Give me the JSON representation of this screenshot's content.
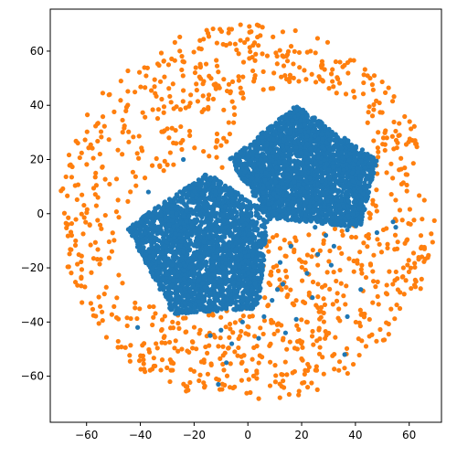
{
  "chart_data": {
    "type": "scatter",
    "title": "",
    "xlabel": "",
    "ylabel": "",
    "xlim": [
      -73.5,
      72.0
    ],
    "ylim": [
      -77.0,
      75.5
    ],
    "xticks": [
      -60,
      -40,
      -20,
      0,
      20,
      40,
      60
    ],
    "yticks": [
      -60,
      -40,
      -20,
      0,
      20,
      40,
      60
    ],
    "xtick_labels": [
      "−60",
      "−40",
      "−20",
      "0",
      "20",
      "40",
      "60"
    ],
    "ytick_labels": [
      "−60",
      "−40",
      "−20",
      "0",
      "20",
      "40",
      "60"
    ],
    "grid": false,
    "legend": "none",
    "series": [
      {
        "color": "#1f77b4",
        "marker": "circle",
        "description_of_distribution": "two dense pentagon-like clusters",
        "clusters": [
          {
            "center": [
              -21,
              -10
            ],
            "radius": 27,
            "pentagon_vertices": [
              [
                -15,
                15
              ],
              [
                8,
                0
              ],
              [
                4,
                -35
              ],
              [
                -28,
                -37
              ],
              [
                -45,
                -5
              ]
            ]
          },
          {
            "center": [
              20,
              20
            ],
            "radius": 27,
            "pentagon_vertices": [
              [
                18,
                40
              ],
              [
                48,
                20
              ],
              [
                42,
                -5
              ],
              [
                8,
                -2
              ],
              [
                -7,
                20
              ]
            ]
          }
        ],
        "sparse_points": [
          [
            -37,
            8
          ],
          [
            -41,
            -42
          ],
          [
            -24,
            20
          ],
          [
            -8,
            -55
          ],
          [
            -11,
            -63
          ],
          [
            -6,
            -48
          ],
          [
            -2,
            -40
          ],
          [
            4,
            -46
          ],
          [
            6,
            -38
          ],
          [
            9,
            -32
          ],
          [
            11,
            -28
          ],
          [
            13,
            -26
          ],
          [
            21,
            -2
          ],
          [
            25,
            -5
          ],
          [
            29,
            -8
          ],
          [
            32,
            -12
          ],
          [
            35,
            -3
          ],
          [
            37,
            -6
          ],
          [
            48,
            -7
          ],
          [
            54,
            -3
          ],
          [
            55,
            -5
          ],
          [
            26,
            -15
          ],
          [
            22,
            -22
          ],
          [
            24,
            -31
          ],
          [
            14,
            -44
          ],
          [
            18,
            -39
          ],
          [
            31,
            -19
          ],
          [
            16,
            -12
          ],
          [
            12,
            -18
          ],
          [
            37,
            -38
          ],
          [
            42,
            -28
          ],
          [
            36,
            -52
          ],
          [
            3,
            -30
          ],
          [
            -14,
            -45
          ],
          [
            -10,
            -43
          ]
        ]
      },
      {
        "color": "#ff7f0e",
        "marker": "circle",
        "description_of_distribution": "sparse points filling the gaps of a disk of radius ~70 centered near (0,0)",
        "disk": {
          "center": [
            0,
            0
          ],
          "radius": 70,
          "count_target": 1000
        }
      }
    ]
  }
}
